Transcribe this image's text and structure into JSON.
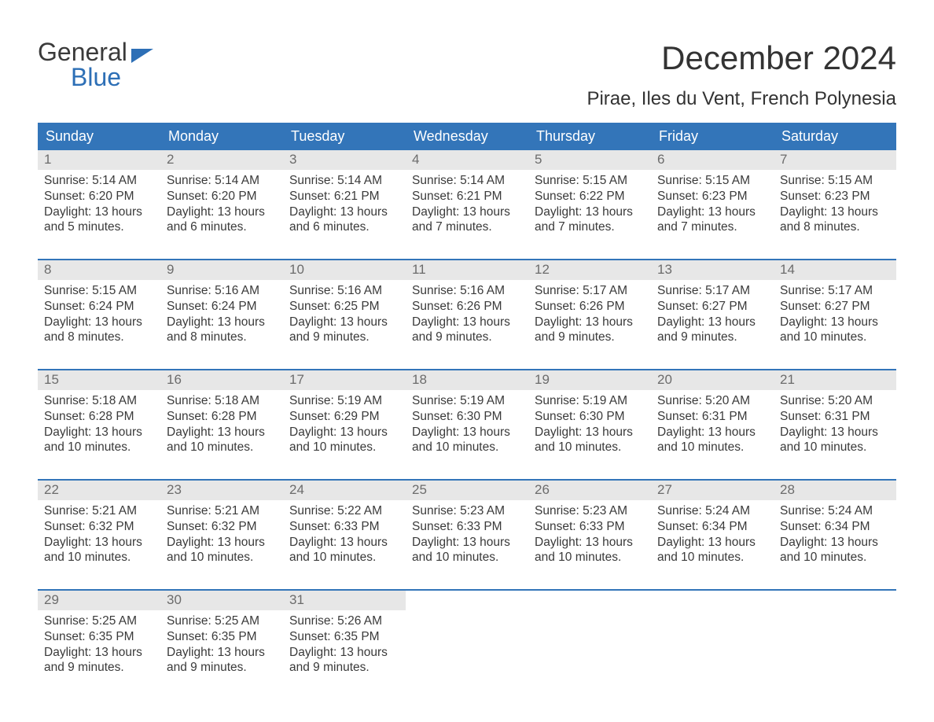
{
  "logo": {
    "line1": "General",
    "line2": "Blue"
  },
  "header": {
    "title": "December 2024",
    "subtitle": "Pirae, Iles du Vent, French Polynesia"
  },
  "colors": {
    "header_bg": "#3375b9",
    "header_text": "#ffffff",
    "daynum_bg": "#e7e7e7",
    "daynum_text": "#6c6c6c",
    "body_text": "#3a3a3a",
    "week_border": "#3375b9",
    "logo_blue": "#2d6fb6"
  },
  "day_labels": [
    "Sunday",
    "Monday",
    "Tuesday",
    "Wednesday",
    "Thursday",
    "Friday",
    "Saturday"
  ],
  "weeks": [
    [
      {
        "day": "1",
        "sunrise": "Sunrise: 5:14 AM",
        "sunset": "Sunset: 6:20 PM",
        "day1": "Daylight: 13 hours",
        "day2": "and 5 minutes."
      },
      {
        "day": "2",
        "sunrise": "Sunrise: 5:14 AM",
        "sunset": "Sunset: 6:20 PM",
        "day1": "Daylight: 13 hours",
        "day2": "and 6 minutes."
      },
      {
        "day": "3",
        "sunrise": "Sunrise: 5:14 AM",
        "sunset": "Sunset: 6:21 PM",
        "day1": "Daylight: 13 hours",
        "day2": "and 6 minutes."
      },
      {
        "day": "4",
        "sunrise": "Sunrise: 5:14 AM",
        "sunset": "Sunset: 6:21 PM",
        "day1": "Daylight: 13 hours",
        "day2": "and 7 minutes."
      },
      {
        "day": "5",
        "sunrise": "Sunrise: 5:15 AM",
        "sunset": "Sunset: 6:22 PM",
        "day1": "Daylight: 13 hours",
        "day2": "and 7 minutes."
      },
      {
        "day": "6",
        "sunrise": "Sunrise: 5:15 AM",
        "sunset": "Sunset: 6:23 PM",
        "day1": "Daylight: 13 hours",
        "day2": "and 7 minutes."
      },
      {
        "day": "7",
        "sunrise": "Sunrise: 5:15 AM",
        "sunset": "Sunset: 6:23 PM",
        "day1": "Daylight: 13 hours",
        "day2": "and 8 minutes."
      }
    ],
    [
      {
        "day": "8",
        "sunrise": "Sunrise: 5:15 AM",
        "sunset": "Sunset: 6:24 PM",
        "day1": "Daylight: 13 hours",
        "day2": "and 8 minutes."
      },
      {
        "day": "9",
        "sunrise": "Sunrise: 5:16 AM",
        "sunset": "Sunset: 6:24 PM",
        "day1": "Daylight: 13 hours",
        "day2": "and 8 minutes."
      },
      {
        "day": "10",
        "sunrise": "Sunrise: 5:16 AM",
        "sunset": "Sunset: 6:25 PM",
        "day1": "Daylight: 13 hours",
        "day2": "and 9 minutes."
      },
      {
        "day": "11",
        "sunrise": "Sunrise: 5:16 AM",
        "sunset": "Sunset: 6:26 PM",
        "day1": "Daylight: 13 hours",
        "day2": "and 9 minutes."
      },
      {
        "day": "12",
        "sunrise": "Sunrise: 5:17 AM",
        "sunset": "Sunset: 6:26 PM",
        "day1": "Daylight: 13 hours",
        "day2": "and 9 minutes."
      },
      {
        "day": "13",
        "sunrise": "Sunrise: 5:17 AM",
        "sunset": "Sunset: 6:27 PM",
        "day1": "Daylight: 13 hours",
        "day2": "and 9 minutes."
      },
      {
        "day": "14",
        "sunrise": "Sunrise: 5:17 AM",
        "sunset": "Sunset: 6:27 PM",
        "day1": "Daylight: 13 hours",
        "day2": "and 10 minutes."
      }
    ],
    [
      {
        "day": "15",
        "sunrise": "Sunrise: 5:18 AM",
        "sunset": "Sunset: 6:28 PM",
        "day1": "Daylight: 13 hours",
        "day2": "and 10 minutes."
      },
      {
        "day": "16",
        "sunrise": "Sunrise: 5:18 AM",
        "sunset": "Sunset: 6:28 PM",
        "day1": "Daylight: 13 hours",
        "day2": "and 10 minutes."
      },
      {
        "day": "17",
        "sunrise": "Sunrise: 5:19 AM",
        "sunset": "Sunset: 6:29 PM",
        "day1": "Daylight: 13 hours",
        "day2": "and 10 minutes."
      },
      {
        "day": "18",
        "sunrise": "Sunrise: 5:19 AM",
        "sunset": "Sunset: 6:30 PM",
        "day1": "Daylight: 13 hours",
        "day2": "and 10 minutes."
      },
      {
        "day": "19",
        "sunrise": "Sunrise: 5:19 AM",
        "sunset": "Sunset: 6:30 PM",
        "day1": "Daylight: 13 hours",
        "day2": "and 10 minutes."
      },
      {
        "day": "20",
        "sunrise": "Sunrise: 5:20 AM",
        "sunset": "Sunset: 6:31 PM",
        "day1": "Daylight: 13 hours",
        "day2": "and 10 minutes."
      },
      {
        "day": "21",
        "sunrise": "Sunrise: 5:20 AM",
        "sunset": "Sunset: 6:31 PM",
        "day1": "Daylight: 13 hours",
        "day2": "and 10 minutes."
      }
    ],
    [
      {
        "day": "22",
        "sunrise": "Sunrise: 5:21 AM",
        "sunset": "Sunset: 6:32 PM",
        "day1": "Daylight: 13 hours",
        "day2": "and 10 minutes."
      },
      {
        "day": "23",
        "sunrise": "Sunrise: 5:21 AM",
        "sunset": "Sunset: 6:32 PM",
        "day1": "Daylight: 13 hours",
        "day2": "and 10 minutes."
      },
      {
        "day": "24",
        "sunrise": "Sunrise: 5:22 AM",
        "sunset": "Sunset: 6:33 PM",
        "day1": "Daylight: 13 hours",
        "day2": "and 10 minutes."
      },
      {
        "day": "25",
        "sunrise": "Sunrise: 5:23 AM",
        "sunset": "Sunset: 6:33 PM",
        "day1": "Daylight: 13 hours",
        "day2": "and 10 minutes."
      },
      {
        "day": "26",
        "sunrise": "Sunrise: 5:23 AM",
        "sunset": "Sunset: 6:33 PM",
        "day1": "Daylight: 13 hours",
        "day2": "and 10 minutes."
      },
      {
        "day": "27",
        "sunrise": "Sunrise: 5:24 AM",
        "sunset": "Sunset: 6:34 PM",
        "day1": "Daylight: 13 hours",
        "day2": "and 10 minutes."
      },
      {
        "day": "28",
        "sunrise": "Sunrise: 5:24 AM",
        "sunset": "Sunset: 6:34 PM",
        "day1": "Daylight: 13 hours",
        "day2": "and 10 minutes."
      }
    ],
    [
      {
        "day": "29",
        "sunrise": "Sunrise: 5:25 AM",
        "sunset": "Sunset: 6:35 PM",
        "day1": "Daylight: 13 hours",
        "day2": "and 9 minutes."
      },
      {
        "day": "30",
        "sunrise": "Sunrise: 5:25 AM",
        "sunset": "Sunset: 6:35 PM",
        "day1": "Daylight: 13 hours",
        "day2": "and 9 minutes."
      },
      {
        "day": "31",
        "sunrise": "Sunrise: 5:26 AM",
        "sunset": "Sunset: 6:35 PM",
        "day1": "Daylight: 13 hours",
        "day2": "and 9 minutes."
      },
      null,
      null,
      null,
      null
    ]
  ]
}
